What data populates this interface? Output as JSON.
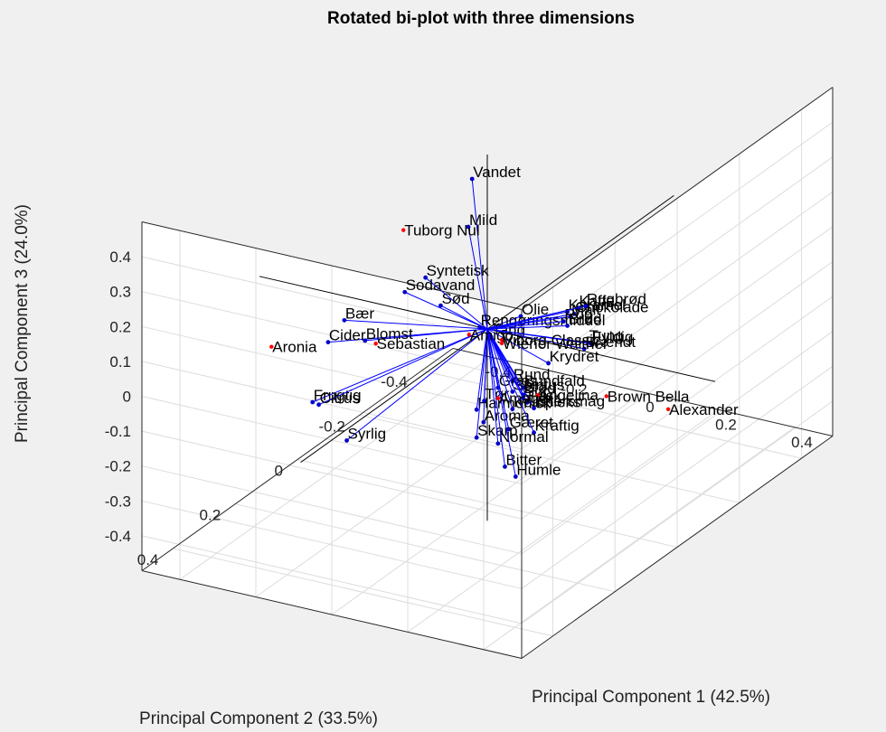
{
  "chart_data": {
    "type": "scatter",
    "title": "Rotated bi-plot with three dimensions",
    "xlabel": "Principal Component 1 (42.5%)",
    "ylabel": "Principal Component 2 (33.5%)",
    "zlabel": "Principal Component 3 (24.0%)",
    "x_ticks": [
      "-0.4",
      "-0.2",
      "0",
      "0.2",
      "0.4"
    ],
    "y_ticks": [
      "-0.4",
      "-0.2",
      "0",
      "0.2",
      "0.4"
    ],
    "z_ticks": [
      "-0.4",
      "-0.3",
      "-0.2",
      "-0.1",
      "0",
      "0.1",
      "0.2",
      "0.3",
      "0.4"
    ],
    "xlim": [
      -0.45,
      0.45
    ],
    "ylim": [
      -0.45,
      0.45
    ],
    "zlim": [
      -0.45,
      0.45
    ],
    "grid": true,
    "colors": {
      "vectors": "#0000ff",
      "variables": "#0000cc",
      "observations": "#ff0000",
      "axes": "#000000"
    },
    "variables": [
      {
        "name": "Vandet",
        "x": -0.04,
        "y": 0.0,
        "z": 0.42
      },
      {
        "name": "Mild",
        "x": -0.05,
        "y": 0.0,
        "z": 0.28
      },
      {
        "name": "Syntetisk",
        "x": -0.13,
        "y": 0.04,
        "z": 0.14
      },
      {
        "name": "Sodavand",
        "x": -0.16,
        "y": 0.07,
        "z": 0.11
      },
      {
        "name": "Sød",
        "x": -0.09,
        "y": 0.04,
        "z": 0.07
      },
      {
        "name": "Bær",
        "x": -0.27,
        "y": 0.13,
        "z": 0.04
      },
      {
        "name": "Cider",
        "x": -0.28,
        "y": 0.17,
        "z": 0.0
      },
      {
        "name": "Blomst",
        "x": -0.24,
        "y": 0.1,
        "z": -0.03
      },
      {
        "name": "Frugtig",
        "x": -0.28,
        "y": 0.22,
        "z": -0.14
      },
      {
        "name": "Citrus",
        "x": -0.28,
        "y": 0.2,
        "z": -0.16
      },
      {
        "name": "Syrlig",
        "x": -0.28,
        "y": 0.11,
        "z": -0.32
      },
      {
        "name": "Olie",
        "x": 0.08,
        "y": -0.01,
        "z": 0.05
      },
      {
        "name": "Rengøringsmiddel",
        "x": -0.02,
        "y": 0.0,
        "z": 0.0
      },
      {
        "name": "Tang",
        "x": 0.01,
        "y": 0.0,
        "z": -0.02
      },
      {
        "name": "Karamel",
        "x": 0.17,
        "y": -0.05,
        "z": 0.06
      },
      {
        "name": "Kaffe",
        "x": 0.19,
        "y": -0.06,
        "z": 0.07
      },
      {
        "name": "Chokolade",
        "x": 0.18,
        "y": -0.06,
        "z": 0.05
      },
      {
        "name": "Malt",
        "x": 0.17,
        "y": -0.06,
        "z": 0.04
      },
      {
        "name": "Rug",
        "x": 0.16,
        "y": -0.05,
        "z": 0.03
      },
      {
        "name": "Brød",
        "x": 0.17,
        "y": -0.05,
        "z": 0.02
      },
      {
        "name": "Rugbrød",
        "x": 0.21,
        "y": -0.06,
        "z": 0.08
      },
      {
        "name": "Tung",
        "x": 0.2,
        "y": -0.08,
        "z": -0.04
      },
      {
        "name": "Fyldig",
        "x": 0.2,
        "y": -0.09,
        "z": -0.05
      },
      {
        "name": "Brændt",
        "x": 0.19,
        "y": -0.08,
        "z": -0.06
      },
      {
        "name": "Krydret",
        "x": 0.12,
        "y": -0.05,
        "z": -0.1
      },
      {
        "name": "Rund",
        "x": 0.05,
        "y": -0.02,
        "z": -0.15
      },
      {
        "name": "Bundfald",
        "x": 0.07,
        "y": -0.03,
        "z": -0.17
      },
      {
        "name": "Græs",
        "x": 0.02,
        "y": -0.01,
        "z": -0.17
      },
      {
        "name": "Spiritus",
        "x": 0.05,
        "y": -0.02,
        "z": -0.18
      },
      {
        "name": "Blød",
        "x": 0.07,
        "y": -0.03,
        "z": -0.19
      },
      {
        "name": "Sur",
        "x": 0.07,
        "y": -0.03,
        "z": -0.2
      },
      {
        "name": "Tør",
        "x": 0.0,
        "y": 0.01,
        "z": -0.2
      },
      {
        "name": "Frisk",
        "x": 0.08,
        "y": -0.03,
        "z": -0.21
      },
      {
        "name": "Harmonisk",
        "x": -0.02,
        "y": 0.01,
        "z": -0.23
      },
      {
        "name": "Kompleks",
        "x": 0.05,
        "y": -0.02,
        "z": -0.23
      },
      {
        "name": "Eftersmag",
        "x": 0.09,
        "y": -0.04,
        "z": -0.23
      },
      {
        "name": "Aroma",
        "x": -0.01,
        "y": 0.0,
        "z": -0.27
      },
      {
        "name": "Gæret",
        "x": 0.04,
        "y": -0.02,
        "z": -0.29
      },
      {
        "name": "Kraftig",
        "x": 0.09,
        "y": -0.04,
        "z": -0.3
      },
      {
        "name": "Skarp",
        "x": -0.02,
        "y": 0.01,
        "z": -0.31
      },
      {
        "name": "Normal",
        "x": 0.02,
        "y": -0.01,
        "z": -0.33
      },
      {
        "name": "Bitter",
        "x": 0.03,
        "y": -0.02,
        "z": -0.4
      },
      {
        "name": "Humle",
        "x": 0.05,
        "y": -0.03,
        "z": -0.43
      }
    ],
    "observations": [
      {
        "name": "Tuborg Nul",
        "x": -0.18,
        "y": 0.05,
        "z": 0.27
      },
      {
        "name": "Aronia",
        "x": -0.38,
        "y": 0.23,
        "z": 0.0
      },
      {
        "name": "Sebastian",
        "x": -0.22,
        "y": 0.09,
        "z": -0.04
      },
      {
        "name": "Amigo",
        "x": -0.04,
        "y": 0.01,
        "z": -0.02
      },
      {
        "name": "Viborg Classic",
        "x": 0.03,
        "y": -0.01,
        "z": -0.03
      },
      {
        "name": "Wiener Walther",
        "x": 0.03,
        "y": -0.01,
        "z": -0.04
      },
      {
        "name": "Angelina",
        "x": 0.1,
        "y": -0.04,
        "z": -0.19
      },
      {
        "name": "Amager",
        "x": 0.02,
        "y": -0.01,
        "z": -0.2
      },
      {
        "name": "Brown Bella",
        "x": 0.24,
        "y": -0.09,
        "z": -0.19
      },
      {
        "name": "Alexander",
        "x": 0.37,
        "y": -0.13,
        "z": -0.22
      }
    ]
  }
}
